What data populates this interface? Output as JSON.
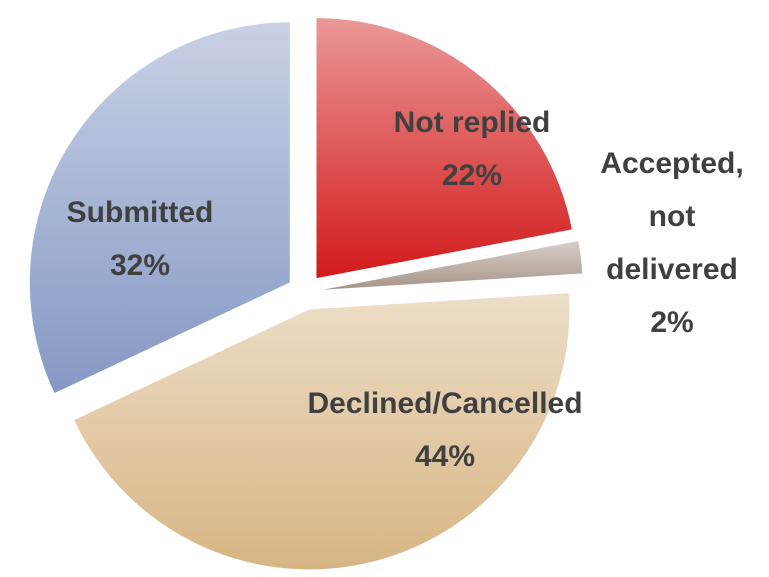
{
  "chart_data": {
    "type": "pie",
    "categories": [
      "Not replied",
      "Accepted, not delivered",
      "Declined/Cancelled",
      "Submitted"
    ],
    "values": [
      22,
      2,
      44,
      32
    ],
    "value_labels": [
      "22%",
      "2%",
      "44%",
      "32%"
    ],
    "colors": [
      "#d21a1a",
      "#a89488",
      "#d7b583",
      "#8598c4"
    ]
  }
}
